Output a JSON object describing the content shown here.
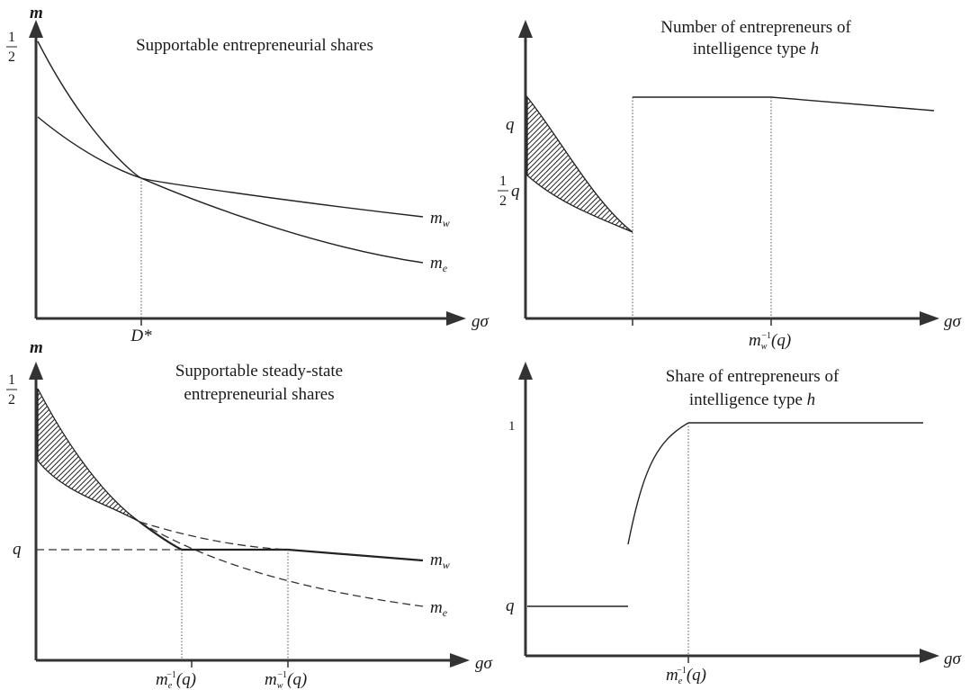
{
  "panels": {
    "top_left": {
      "title": "Supportable entrepreneurial shares",
      "y_axis_label": "m",
      "x_axis_label": "gσ",
      "y_tick_half_num": "1",
      "y_tick_half_den": "2",
      "x_tick": "D*",
      "curve_w_base": "m",
      "curve_w_sub": "w",
      "curve_e_base": "m",
      "curve_e_sub": "e"
    },
    "top_right": {
      "title_line1": "Number of entrepreneurs of",
      "title_line2": "intelligence type",
      "title_var": "h",
      "x_axis_label": "gσ",
      "y_tick_q": "q",
      "y_tick_half_num": "1",
      "y_tick_half_den": "2",
      "y_tick_half_q": "q",
      "x_tick_base": "m",
      "x_tick_sub": "w",
      "x_tick_sup": "−1",
      "x_tick_arg": "(q)"
    },
    "bottom_left": {
      "title_line1": "Supportable steady-state",
      "title_line2": "entrepreneurial shares",
      "y_axis_label": "m",
      "x_axis_label": "gσ",
      "y_tick_half_num": "1",
      "y_tick_half_den": "2",
      "y_tick_q": "q",
      "x_tick1_base": "m",
      "x_tick1_sub": "e",
      "x_tick1_sup": "−1",
      "x_tick1_arg": "(q)",
      "x_tick2_base": "m",
      "x_tick2_sub": "w",
      "x_tick2_sup": "−1",
      "x_tick2_arg": "(q)",
      "curve_w_base": "m",
      "curve_w_sub": "w",
      "curve_e_base": "m",
      "curve_e_sub": "e"
    },
    "bottom_right": {
      "title_line1": "Share of entrepreneurs of",
      "title_line2": "intelligence type",
      "title_var": "h",
      "x_axis_label": "gσ",
      "y_tick_one": "1",
      "y_tick_q": "q",
      "x_tick_base": "m",
      "x_tick_sub": "e",
      "x_tick_sup": "−1",
      "x_tick_arg": "(q)"
    }
  },
  "colors": {
    "line": "#222222",
    "axis": "#333333",
    "hatch": "#222222",
    "background": "#ffffff"
  }
}
